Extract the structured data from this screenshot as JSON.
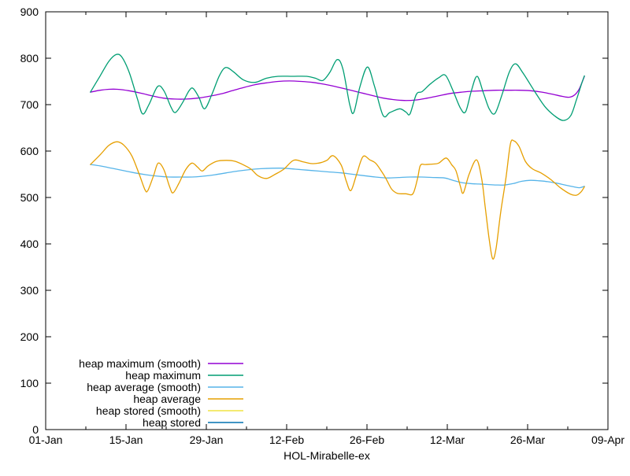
{
  "chart_data": {
    "type": "line",
    "title": "",
    "xlabel": "HOL-Mirabelle-ex",
    "ylabel": "",
    "grid": false,
    "legend_position": "bottom-left-inside",
    "axis_color": "#000000",
    "background_color": "#ffffff",
    "x_unit": "days since 01-Jan",
    "x_range": [
      0,
      98
    ],
    "y_range": [
      0,
      900
    ],
    "y_ticks": [
      0,
      100,
      200,
      300,
      400,
      500,
      600,
      700,
      800,
      900
    ],
    "x_ticks": [
      {
        "day": 0,
        "label": "01-Jan"
      },
      {
        "day": 14,
        "label": "15-Jan"
      },
      {
        "day": 28,
        "label": "29-Jan"
      },
      {
        "day": 42,
        "label": "12-Feb"
      },
      {
        "day": 56,
        "label": "26-Feb"
      },
      {
        "day": 70,
        "label": "12-Mar"
      },
      {
        "day": 84,
        "label": "26-Mar"
      },
      {
        "day": 98,
        "label": "09-Apr"
      }
    ],
    "x_minor_days": [
      7,
      21,
      35,
      49,
      63,
      77,
      91
    ],
    "series": [
      {
        "name": "heap maximum (smooth)",
        "color": "#9400d3",
        "points": [
          [
            7.8,
            727
          ],
          [
            9.5,
            731
          ],
          [
            11,
            733
          ],
          [
            12.5,
            733
          ],
          [
            14.5,
            730
          ],
          [
            16.5,
            725
          ],
          [
            18.5,
            719
          ],
          [
            20.5,
            714
          ],
          [
            22.5,
            712
          ],
          [
            24.5,
            712
          ],
          [
            26.5,
            714
          ],
          [
            28.5,
            718
          ],
          [
            30.5,
            723
          ],
          [
            32.5,
            730
          ],
          [
            34.5,
            737
          ],
          [
            36.5,
            743
          ],
          [
            38.5,
            747
          ],
          [
            40.5,
            750
          ],
          [
            42.5,
            751
          ],
          [
            44.5,
            750
          ],
          [
            46.5,
            748
          ],
          [
            48.5,
            744
          ],
          [
            50.5,
            739
          ],
          [
            52.5,
            733
          ],
          [
            54.5,
            727
          ],
          [
            56.5,
            721
          ],
          [
            58.5,
            715
          ],
          [
            60.5,
            711
          ],
          [
            62.5,
            709
          ],
          [
            64.5,
            710
          ],
          [
            66.5,
            714
          ],
          [
            68.5,
            719
          ],
          [
            70.5,
            724
          ],
          [
            72.5,
            727
          ],
          [
            74.5,
            729
          ],
          [
            76.5,
            730
          ],
          [
            78.5,
            731
          ],
          [
            80.5,
            731
          ],
          [
            82.5,
            731
          ],
          [
            84.5,
            730
          ],
          [
            86.5,
            727
          ],
          [
            88.5,
            722
          ],
          [
            90,
            718
          ],
          [
            91.2,
            716
          ],
          [
            92.2,
            721
          ],
          [
            93,
            734
          ],
          [
            93.9,
            761
          ]
        ]
      },
      {
        "name": "heap maximum",
        "color": "#009e73",
        "points": [
          [
            7.8,
            727
          ],
          [
            9.5,
            762
          ],
          [
            11,
            793
          ],
          [
            12.3,
            808
          ],
          [
            13.3,
            802
          ],
          [
            14.6,
            768
          ],
          [
            16,
            712
          ],
          [
            16.9,
            680
          ],
          [
            18,
            700
          ],
          [
            19.5,
            739
          ],
          [
            20.6,
            730
          ],
          [
            21.8,
            696
          ],
          [
            22.6,
            683
          ],
          [
            23.8,
            703
          ],
          [
            25,
            730
          ],
          [
            25.7,
            735
          ],
          [
            26.7,
            716
          ],
          [
            27.7,
            691
          ],
          [
            29,
            723
          ],
          [
            30.3,
            763
          ],
          [
            31.4,
            780
          ],
          [
            32.8,
            770
          ],
          [
            34.5,
            753
          ],
          [
            36.5,
            748
          ],
          [
            38.5,
            757
          ],
          [
            40.5,
            761
          ],
          [
            43,
            761
          ],
          [
            45.5,
            761
          ],
          [
            47,
            757
          ],
          [
            48.3,
            752
          ],
          [
            49.5,
            769
          ],
          [
            50.8,
            797
          ],
          [
            51.8,
            777
          ],
          [
            53,
            700
          ],
          [
            53.7,
            683
          ],
          [
            54.8,
            740
          ],
          [
            56.1,
            781
          ],
          [
            57.3,
            740
          ],
          [
            58.8,
            677
          ],
          [
            60,
            683
          ],
          [
            61.7,
            691
          ],
          [
            62.8,
            684
          ],
          [
            63.5,
            680
          ],
          [
            64.6,
            722
          ],
          [
            65.6,
            728
          ],
          [
            67,
            744
          ],
          [
            68.5,
            758
          ],
          [
            69.7,
            763
          ],
          [
            71,
            730
          ],
          [
            72.3,
            692
          ],
          [
            73.2,
            685
          ],
          [
            74.2,
            730
          ],
          [
            75.2,
            761
          ],
          [
            76.3,
            725
          ],
          [
            77.3,
            691
          ],
          [
            78.3,
            681
          ],
          [
            79.5,
            720
          ],
          [
            80.8,
            770
          ],
          [
            81.9,
            788
          ],
          [
            83.2,
            768
          ],
          [
            85.3,
            727
          ],
          [
            87,
            696
          ],
          [
            88.7,
            676
          ],
          [
            90.2,
            666
          ],
          [
            91.5,
            676
          ],
          [
            92.5,
            710
          ],
          [
            93.4,
            745
          ],
          [
            93.9,
            762
          ]
        ]
      },
      {
        "name": "heap average (smooth)",
        "color": "#56b4e9",
        "points": [
          [
            7.8,
            571
          ],
          [
            9.5,
            568
          ],
          [
            11.5,
            563
          ],
          [
            13.5,
            558
          ],
          [
            15.5,
            553
          ],
          [
            17.5,
            549
          ],
          [
            19.5,
            546
          ],
          [
            21.5,
            544
          ],
          [
            23.5,
            544
          ],
          [
            25.5,
            544
          ],
          [
            27.5,
            546
          ],
          [
            29.5,
            549
          ],
          [
            31.5,
            553
          ],
          [
            33.5,
            557
          ],
          [
            35.5,
            560
          ],
          [
            37.5,
            562
          ],
          [
            39.5,
            563
          ],
          [
            41.5,
            563
          ],
          [
            43.5,
            561
          ],
          [
            45.5,
            559
          ],
          [
            47.5,
            557
          ],
          [
            49.5,
            555
          ],
          [
            51.5,
            553
          ],
          [
            53.5,
            550
          ],
          [
            55.5,
            547
          ],
          [
            57.5,
            544
          ],
          [
            59.5,
            542
          ],
          [
            61.5,
            543
          ],
          [
            63.5,
            544
          ],
          [
            65.5,
            544
          ],
          [
            67.5,
            543
          ],
          [
            69.5,
            542
          ],
          [
            71,
            537
          ],
          [
            72.5,
            532
          ],
          [
            74,
            530
          ],
          [
            75.5,
            529
          ],
          [
            77,
            528
          ],
          [
            78.5,
            527
          ],
          [
            80,
            527
          ],
          [
            81.5,
            530
          ],
          [
            83,
            535
          ],
          [
            84.5,
            537
          ],
          [
            86,
            536
          ],
          [
            87.5,
            534
          ],
          [
            89,
            531
          ],
          [
            90.5,
            527
          ],
          [
            92,
            523
          ],
          [
            93,
            521
          ],
          [
            93.9,
            524
          ]
        ]
      },
      {
        "name": "heap average",
        "color": "#e69f00",
        "points": [
          [
            7.8,
            571
          ],
          [
            9.5,
            592
          ],
          [
            11,
            612
          ],
          [
            12.4,
            620
          ],
          [
            13.6,
            613
          ],
          [
            15,
            590
          ],
          [
            16.3,
            550
          ],
          [
            17.3,
            517
          ],
          [
            17.8,
            515
          ],
          [
            18.8,
            547
          ],
          [
            19.6,
            574
          ],
          [
            20.6,
            560
          ],
          [
            21.6,
            523
          ],
          [
            22.2,
            510
          ],
          [
            23.2,
            530
          ],
          [
            24.4,
            560
          ],
          [
            25.5,
            574
          ],
          [
            26.5,
            565
          ],
          [
            27.3,
            557
          ],
          [
            28.3,
            568
          ],
          [
            29.8,
            578
          ],
          [
            31.5,
            580
          ],
          [
            33,
            578
          ],
          [
            34.5,
            570
          ],
          [
            35.8,
            561
          ],
          [
            37,
            547
          ],
          [
            38.5,
            541
          ],
          [
            40,
            550
          ],
          [
            41.5,
            561
          ],
          [
            43.2,
            580
          ],
          [
            44.8,
            577
          ],
          [
            46.3,
            573
          ],
          [
            47.6,
            574
          ],
          [
            49,
            580
          ],
          [
            50.1,
            590
          ],
          [
            51.5,
            570
          ],
          [
            52.4,
            535
          ],
          [
            53.2,
            515
          ],
          [
            54.2,
            550
          ],
          [
            55.3,
            588
          ],
          [
            56.5,
            581
          ],
          [
            57.5,
            574
          ],
          [
            58.5,
            557
          ],
          [
            59.3,
            541
          ],
          [
            60.3,
            518
          ],
          [
            61.3,
            509
          ],
          [
            62.8,
            508
          ],
          [
            64,
            508
          ],
          [
            64.8,
            540
          ],
          [
            65.3,
            569
          ],
          [
            66.2,
            571
          ],
          [
            67.5,
            572
          ],
          [
            68.5,
            574
          ],
          [
            69.8,
            585
          ],
          [
            70.8,
            570
          ],
          [
            71.5,
            558
          ],
          [
            72.3,
            523
          ],
          [
            72.8,
            510
          ],
          [
            73.8,
            550
          ],
          [
            75.1,
            581
          ],
          [
            76,
            540
          ],
          [
            76.6,
            480
          ],
          [
            77.3,
            410
          ],
          [
            77.9,
            368
          ],
          [
            78.5,
            390
          ],
          [
            79.3,
            468
          ],
          [
            80.2,
            540
          ],
          [
            81,
            615
          ],
          [
            81.6,
            622
          ],
          [
            82.5,
            610
          ],
          [
            83.6,
            578
          ],
          [
            84.8,
            562
          ],
          [
            86.3,
            553
          ],
          [
            88,
            539
          ],
          [
            89.8,
            520
          ],
          [
            91.5,
            507
          ],
          [
            92.5,
            505
          ],
          [
            93.3,
            512
          ],
          [
            93.9,
            523
          ]
        ]
      },
      {
        "name": "heap stored (smooth)",
        "color": "#f0e442",
        "points": []
      },
      {
        "name": "heap stored",
        "color": "#0072b2",
        "points": []
      }
    ]
  }
}
